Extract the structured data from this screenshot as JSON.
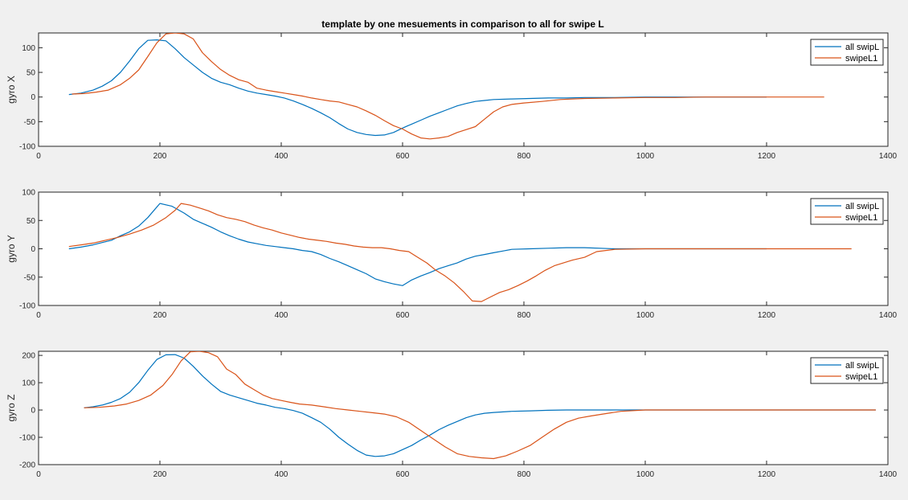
{
  "figure": {
    "title": "template by one mesuements in comparison to all for swipe L"
  },
  "colors": {
    "background": "#f0f0f0",
    "axes_background": "#ffffff",
    "series_all": "#0072BD",
    "series_single": "#D95319"
  },
  "chart_data": [
    {
      "type": "line",
      "title": "template by one mesuements in comparison to all for swipe L",
      "xlabel": "",
      "ylabel": "gyro X",
      "xlim": [
        0,
        1400
      ],
      "ylim": [
        -100,
        130
      ],
      "xticks": [
        0,
        200,
        400,
        600,
        800,
        1000,
        1200,
        1400
      ],
      "yticks": [
        -100,
        -50,
        0,
        50,
        100
      ],
      "grid": false,
      "legend_position": "top-right",
      "series": [
        {
          "name": "all swipL",
          "color": "#0072BD",
          "x": [
            50,
            70,
            90,
            105,
            120,
            135,
            150,
            165,
            180,
            195,
            210,
            225,
            240,
            255,
            270,
            285,
            300,
            315,
            330,
            345,
            360,
            375,
            390,
            405,
            420,
            435,
            450,
            465,
            480,
            495,
            510,
            525,
            540,
            555,
            570,
            585,
            600,
            615,
            630,
            645,
            660,
            675,
            690,
            705,
            720,
            735,
            750,
            780,
            810,
            840,
            870,
            900,
            950,
            1000,
            1050,
            1100,
            1150,
            1200
          ],
          "y": [
            5,
            8,
            14,
            22,
            33,
            50,
            73,
            98,
            115,
            116,
            114,
            98,
            80,
            65,
            50,
            38,
            30,
            25,
            18,
            12,
            8,
            5,
            2,
            -2,
            -8,
            -15,
            -23,
            -32,
            -42,
            -54,
            -65,
            -72,
            -76,
            -78,
            -77,
            -72,
            -63,
            -55,
            -47,
            -39,
            -32,
            -25,
            -18,
            -13,
            -9,
            -7,
            -5,
            -4,
            -3,
            -2,
            -2,
            -1,
            -1,
            0,
            0,
            0,
            0,
            0
          ]
        },
        {
          "name": "swipeL1",
          "color": "#D95319",
          "x": [
            55,
            75,
            95,
            115,
            135,
            150,
            165,
            180,
            195,
            210,
            225,
            240,
            255,
            270,
            285,
            300,
            315,
            330,
            345,
            360,
            375,
            390,
            405,
            420,
            435,
            450,
            465,
            480,
            495,
            510,
            525,
            540,
            555,
            570,
            585,
            600,
            615,
            630,
            645,
            660,
            675,
            690,
            705,
            720,
            735,
            750,
            765,
            780,
            800,
            830,
            860,
            900,
            950,
            1000,
            1050,
            1100,
            1150,
            1200,
            1250,
            1295
          ],
          "y": [
            6,
            7,
            10,
            14,
            25,
            38,
            55,
            82,
            110,
            128,
            130,
            128,
            118,
            90,
            72,
            56,
            44,
            35,
            30,
            18,
            14,
            11,
            8,
            5,
            2,
            -2,
            -5,
            -8,
            -10,
            -15,
            -20,
            -28,
            -37,
            -48,
            -58,
            -65,
            -75,
            -83,
            -85,
            -83,
            -80,
            -72,
            -66,
            -60,
            -45,
            -30,
            -20,
            -15,
            -12,
            -9,
            -5,
            -3,
            -2,
            -1,
            -1,
            0,
            0,
            0,
            0,
            0
          ]
        }
      ]
    },
    {
      "type": "line",
      "xlabel": "",
      "ylabel": "gyro Y",
      "xlim": [
        0,
        1400
      ],
      "ylim": [
        -100,
        100
      ],
      "xticks": [
        0,
        200,
        400,
        600,
        800,
        1000,
        1200,
        1400
      ],
      "yticks": [
        -100,
        -50,
        0,
        50,
        100
      ],
      "grid": false,
      "legend_position": "top-right",
      "series": [
        {
          "name": "all swipL",
          "color": "#0072BD",
          "x": [
            50,
            70,
            90,
            105,
            120,
            135,
            150,
            165,
            180,
            200,
            220,
            240,
            255,
            270,
            285,
            300,
            315,
            330,
            345,
            360,
            375,
            390,
            405,
            420,
            435,
            450,
            465,
            480,
            495,
            510,
            525,
            540,
            555,
            570,
            585,
            600,
            615,
            630,
            645,
            660,
            675,
            690,
            705,
            720,
            735,
            750,
            765,
            780,
            810,
            840,
            870,
            900,
            950,
            1000,
            1050,
            1100,
            1150,
            1200
          ],
          "y": [
            0,
            3,
            7,
            11,
            15,
            23,
            30,
            40,
            55,
            80,
            75,
            63,
            52,
            45,
            38,
            30,
            23,
            17,
            12,
            9,
            6,
            4,
            2,
            0,
            -3,
            -5,
            -10,
            -17,
            -23,
            -30,
            -37,
            -44,
            -53,
            -58,
            -62,
            -65,
            -55,
            -48,
            -42,
            -35,
            -30,
            -25,
            -18,
            -13,
            -10,
            -7,
            -4,
            -1,
            0,
            1,
            2,
            2,
            0,
            0,
            0,
            0,
            0,
            0
          ]
        },
        {
          "name": "swipeL1",
          "color": "#D95319",
          "x": [
            50,
            70,
            90,
            110,
            130,
            150,
            170,
            190,
            210,
            225,
            235,
            250,
            265,
            280,
            295,
            310,
            325,
            340,
            355,
            370,
            385,
            400,
            415,
            430,
            445,
            460,
            475,
            490,
            505,
            520,
            535,
            550,
            565,
            580,
            595,
            610,
            625,
            640,
            655,
            670,
            685,
            700,
            715,
            730,
            745,
            760,
            775,
            790,
            805,
            820,
            835,
            850,
            865,
            880,
            900,
            920,
            950,
            1000,
            1100,
            1200,
            1340
          ],
          "y": [
            4,
            7,
            10,
            15,
            20,
            26,
            33,
            42,
            55,
            68,
            80,
            77,
            72,
            67,
            60,
            55,
            52,
            48,
            42,
            37,
            33,
            28,
            24,
            20,
            17,
            15,
            13,
            10,
            8,
            5,
            3,
            2,
            2,
            0,
            -3,
            -5,
            -15,
            -25,
            -38,
            -48,
            -60,
            -75,
            -92,
            -93,
            -85,
            -77,
            -72,
            -65,
            -57,
            -48,
            -38,
            -30,
            -25,
            -20,
            -15,
            -5,
            -1,
            0,
            0,
            0,
            0
          ]
        }
      ]
    },
    {
      "type": "line",
      "xlabel": "",
      "ylabel": "gyro Z",
      "xlim": [
        0,
        1400
      ],
      "ylim": [
        -200,
        215
      ],
      "xticks": [
        0,
        200,
        400,
        600,
        800,
        1000,
        1200,
        1400
      ],
      "yticks": [
        -200,
        -100,
        0,
        100,
        200
      ],
      "grid": false,
      "legend_position": "top-right",
      "series": [
        {
          "name": "all swipL",
          "color": "#0072BD",
          "x": [
            75,
            90,
            105,
            120,
            135,
            150,
            165,
            180,
            195,
            210,
            225,
            240,
            255,
            270,
            285,
            300,
            315,
            330,
            345,
            360,
            375,
            390,
            405,
            420,
            435,
            450,
            465,
            480,
            495,
            510,
            525,
            540,
            555,
            570,
            585,
            600,
            615,
            630,
            645,
            660,
            675,
            690,
            705,
            720,
            735,
            750,
            780,
            810,
            840,
            870,
            900,
            950,
            1000,
            1050,
            1100,
            1150,
            1200,
            1250,
            1300,
            1380
          ],
          "y": [
            8,
            12,
            18,
            28,
            42,
            65,
            100,
            145,
            185,
            202,
            203,
            190,
            160,
            125,
            95,
            68,
            55,
            45,
            35,
            25,
            18,
            10,
            5,
            -2,
            -12,
            -28,
            -45,
            -70,
            -100,
            -125,
            -148,
            -165,
            -170,
            -168,
            -160,
            -145,
            -130,
            -110,
            -92,
            -72,
            -56,
            -42,
            -28,
            -18,
            -12,
            -9,
            -5,
            -3,
            -1,
            0,
            0,
            0,
            0,
            0,
            0,
            0,
            0,
            0,
            0,
            0
          ]
        },
        {
          "name": "swipeL1",
          "color": "#D95319",
          "x": [
            75,
            100,
            125,
            145,
            165,
            185,
            205,
            220,
            235,
            250,
            265,
            280,
            295,
            310,
            325,
            340,
            355,
            370,
            385,
            400,
            415,
            430,
            450,
            470,
            490,
            510,
            530,
            550,
            570,
            590,
            610,
            630,
            650,
            670,
            690,
            710,
            730,
            750,
            770,
            790,
            810,
            830,
            850,
            870,
            890,
            910,
            930,
            960,
            1000,
            1100,
            1200,
            1300,
            1380
          ],
          "y": [
            8,
            10,
            15,
            22,
            35,
            55,
            90,
            130,
            180,
            213,
            215,
            210,
            195,
            150,
            130,
            95,
            75,
            55,
            42,
            35,
            28,
            22,
            18,
            12,
            5,
            0,
            -5,
            -10,
            -15,
            -25,
            -45,
            -75,
            -105,
            -135,
            -160,
            -170,
            -175,
            -178,
            -168,
            -150,
            -130,
            -100,
            -70,
            -45,
            -30,
            -22,
            -15,
            -5,
            0,
            0,
            0,
            0,
            0
          ]
        }
      ]
    }
  ]
}
